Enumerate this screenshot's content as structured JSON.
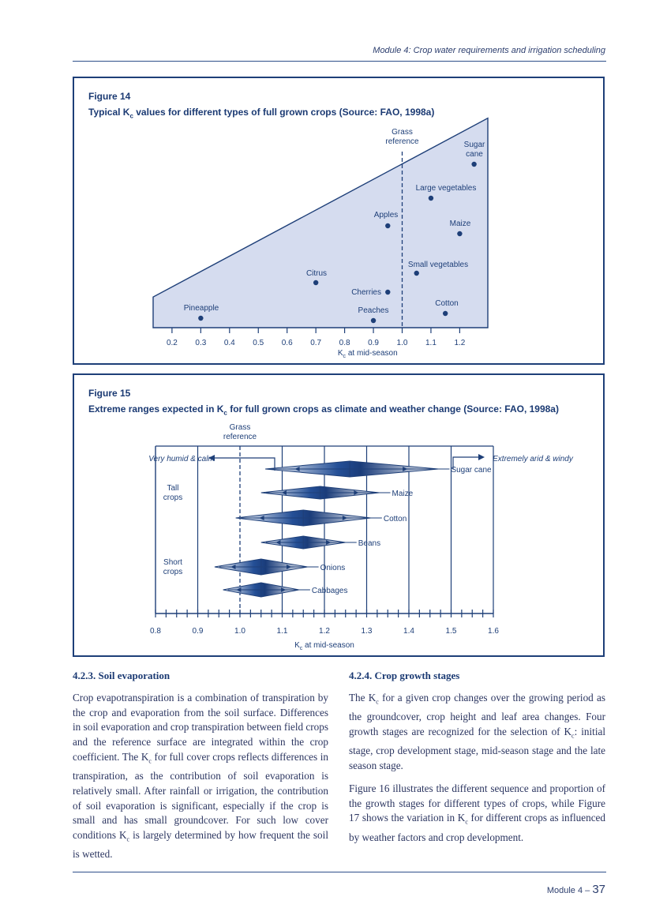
{
  "header": {
    "text": "Module 4: Crop water requirements and irrigation scheduling"
  },
  "figure14": {
    "label": "Figure 14",
    "title_pre": "Typical K",
    "title_sub": "c",
    "title_post": " values for different types of full grown crops (Source: FAO, 1998a)",
    "reference_line1": "Grass",
    "reference_line2": "reference",
    "xlabel_main": "K",
    "xlabel_sub": "c",
    "xlabel_rest": " at mid-season",
    "ticks": [
      "0.2",
      "0.3",
      "0.4",
      "0.5",
      "0.6",
      "0.7",
      "0.8",
      "0.9",
      "1.0",
      "1.1",
      "1.2"
    ],
    "crops": [
      {
        "name": "Sugar",
        "name2": "cane",
        "kc": 1.25
      },
      {
        "name": "Large vegetables",
        "kc": 1.1
      },
      {
        "name": "Apples",
        "kc": 0.95
      },
      {
        "name": "Maize",
        "kc": 1.2
      },
      {
        "name": "Small vegetables",
        "kc": 1.05
      },
      {
        "name": "Citrus",
        "kc": 0.7
      },
      {
        "name": "Cherries",
        "kc": 0.95
      },
      {
        "name": "Cotton",
        "kc": 1.15
      },
      {
        "name": "Pineapple",
        "kc": 0.3
      },
      {
        "name": "Peaches",
        "kc": 0.9
      }
    ]
  },
  "figure15": {
    "label": "Figure 15",
    "title_pre": "Extreme ranges expected in K",
    "title_sub": "c",
    "title_post": " for full grown crops as climate and weather change (Source: FAO, 1998a)",
    "reference_line1": "Grass",
    "reference_line2": "reference",
    "left_arrow": "Very humid & calm",
    "right_arrow": "Extremely arid & windy",
    "group_tall_1": "Tall",
    "group_tall_2": "crops",
    "group_short_1": "Short",
    "group_short_2": "crops",
    "xlabel_main": "K",
    "xlabel_sub": "c",
    "xlabel_rest": " at mid-season",
    "ticks": [
      "0.8",
      "0.9",
      "1.0",
      "1.1",
      "1.2",
      "1.3",
      "1.4",
      "1.5",
      "1.6"
    ],
    "crops": [
      {
        "name": "Sugar cane",
        "min": 1.06,
        "center": 1.26,
        "max": 1.47
      },
      {
        "name": "Maize",
        "min": 1.05,
        "center": 1.19,
        "max": 1.33
      },
      {
        "name": "Cotton",
        "min": 0.99,
        "center": 1.15,
        "max": 1.31
      },
      {
        "name": "Beans",
        "min": 1.05,
        "center": 1.15,
        "max": 1.25
      },
      {
        "name": "Onions",
        "min": 0.94,
        "center": 1.05,
        "max": 1.16
      },
      {
        "name": "Cabbages",
        "min": 0.96,
        "center": 1.05,
        "max": 1.14
      }
    ]
  },
  "section_423": {
    "heading": "4.2.3. Soil evaporation",
    "p1_a": "Crop evapotranspiration is a combination of transpiration by the crop and evaporation from the soil surface. Differences in soil evaporation and crop transpiration between field crops and the reference surface are integrated within the crop coefficient. The K",
    "p1_sub1": "c",
    "p1_b": " for full cover crops reflects differences in transpiration, as the contribution of soil evaporation is relatively small. After rainfall or irrigation, the contribution of soil evaporation is significant, especially if the crop is small and has small groundcover. For such low cover conditions K",
    "p1_sub2": "c",
    "p1_c": " is largely determined by how frequent the soil is wetted."
  },
  "section_424": {
    "heading": "4.2.4. Crop growth stages",
    "p1_a": "The K",
    "p1_sub1": "c",
    "p1_b": " for a given crop changes over the growing period as the groundcover, crop height and leaf area changes. Four growth stages are recognized for the selection of K",
    "p1_sub2": "c",
    "p1_c": ": initial stage, crop development stage, mid-season stage and the late season stage.",
    "p2_a": "Figure 16 illustrates the different sequence and proportion of the growth stages for different types of crops, while Figure 17 shows the variation in K",
    "p2_sub": "c",
    "p2_b": " for different crops as influenced by weather factors and crop development."
  },
  "footer": {
    "module": "Module 4 – ",
    "page": "37"
  }
}
